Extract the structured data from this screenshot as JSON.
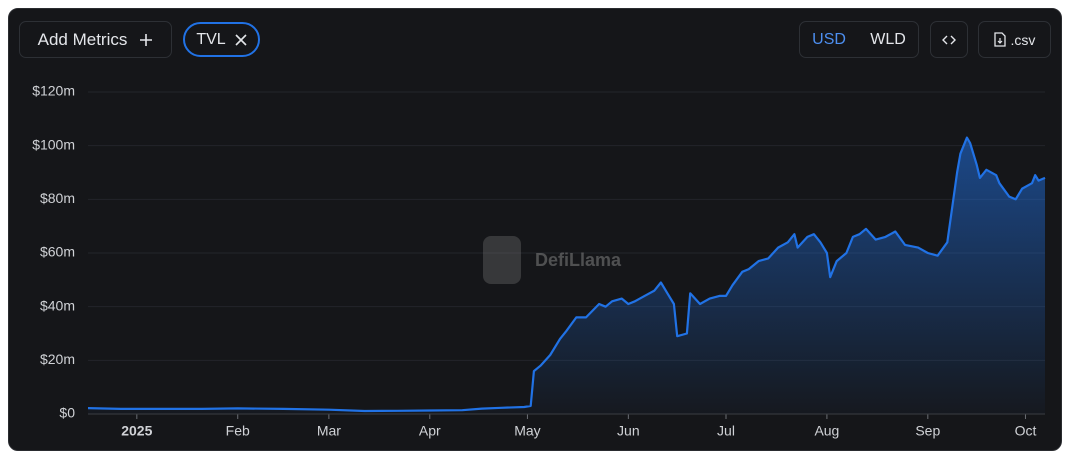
{
  "toolbar": {
    "add_metrics": "Add Metrics",
    "currencies": [
      "USD",
      "WLD"
    ],
    "csv": ".csv"
  },
  "chart_data": {
    "type": "area",
    "watermark": "DefiLlama",
    "x": [
      -15,
      -5,
      0,
      10,
      20,
      31,
      45,
      59,
      70,
      80,
      90,
      100,
      106,
      112,
      119,
      121,
      122,
      124,
      127,
      130,
      132,
      135,
      138,
      142,
      144,
      146,
      149,
      151,
      153,
      156,
      159,
      161,
      163,
      165,
      166,
      169,
      170,
      173,
      176,
      179,
      181,
      183,
      186,
      188,
      191,
      194,
      197,
      200,
      202,
      203,
      206,
      208,
      210,
      212,
      213,
      215,
      218,
      220,
      222,
      224,
      227,
      230,
      233,
      236,
      240,
      243,
      246,
      249,
      252,
      253,
      255,
      256,
      258,
      259,
      261,
      264,
      265,
      268,
      270,
      272,
      275,
      276,
      277,
      279
    ],
    "series": [
      {
        "name": "TVL",
        "color": "#2172e5",
        "values": [
          2.2,
          1.9,
          1.9,
          1.9,
          1.9,
          2.1,
          1.9,
          1.6,
          1.1,
          1.2,
          1.3,
          1.4,
          2,
          2.3,
          2.6,
          3,
          16,
          18,
          22,
          28,
          31,
          36,
          36,
          41,
          40,
          42,
          43,
          41,
          42,
          44,
          46,
          49,
          45,
          41,
          29,
          30,
          45,
          41,
          43,
          44,
          44,
          48,
          53,
          54,
          57,
          58,
          62,
          64,
          67,
          62,
          66,
          67,
          64,
          60,
          51,
          57,
          60,
          66,
          67,
          69,
          65,
          66,
          68,
          63,
          62,
          60,
          59,
          64,
          90,
          97,
          103,
          101,
          93,
          88,
          91,
          89,
          86,
          81,
          80,
          84,
          86,
          89,
          87,
          88
        ]
      }
    ],
    "xlim": [
      -15,
      279
    ],
    "xticks": [
      {
        "value": 0,
        "label": "2025"
      },
      {
        "value": 31,
        "label": "Feb"
      },
      {
        "value": 59,
        "label": "Mar"
      },
      {
        "value": 90,
        "label": "Apr"
      },
      {
        "value": 120,
        "label": "May"
      },
      {
        "value": 151,
        "label": "Jun"
      },
      {
        "value": 181,
        "label": "Jul"
      },
      {
        "value": 212,
        "label": "Aug"
      },
      {
        "value": 243,
        "label": "Sep"
      },
      {
        "value": 273,
        "label": "Oct"
      }
    ],
    "ylim": [
      0,
      120
    ],
    "yticks": [
      {
        "value": 0,
        "label": "$0"
      },
      {
        "value": 20,
        "label": "$20m"
      },
      {
        "value": 40,
        "label": "$40m"
      },
      {
        "value": 60,
        "label": "$60m"
      },
      {
        "value": 80,
        "label": "$80m"
      },
      {
        "value": 100,
        "label": "$100m"
      },
      {
        "value": 120,
        "label": "$120m"
      }
    ],
    "grid": true
  }
}
